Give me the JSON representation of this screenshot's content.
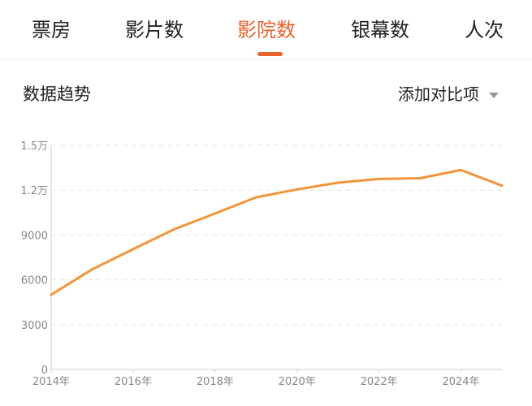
{
  "tabs": [
    {
      "label": "票房",
      "active": false
    },
    {
      "label": "影片数",
      "active": false
    },
    {
      "label": "影院数",
      "active": true
    },
    {
      "label": "银幕数",
      "active": false
    },
    {
      "label": "人次",
      "active": false
    }
  ],
  "section": {
    "title": "数据趋势",
    "compare_label": "添加对比项"
  },
  "colors": {
    "accent": "#e8622a",
    "line": "#f0953a",
    "grid": "#e6e6e6",
    "axis": "#cccccc",
    "tick_text": "#888888"
  },
  "chart_data": {
    "type": "line",
    "x": [
      2014,
      2015,
      2016,
      2017,
      2018,
      2019,
      2020,
      2021,
      2022,
      2023,
      2024,
      2025
    ],
    "series": [
      {
        "values": [
          5000,
          6700,
          8050,
          9380,
          10440,
          11520,
          12050,
          12500,
          12750,
          12800,
          13350,
          12300
        ]
      }
    ],
    "x_tick_labels": [
      "2014年",
      "2016年",
      "2018年",
      "2020年",
      "2022年",
      "2024年"
    ],
    "y_ticks": [
      0,
      3000,
      6000,
      9000,
      12000,
      15000
    ],
    "y_tick_labels": [
      "0",
      "3000",
      "6000",
      "9000",
      "1.2万",
      "1.5万"
    ],
    "ylim": [
      0,
      15000
    ],
    "grid": true
  }
}
